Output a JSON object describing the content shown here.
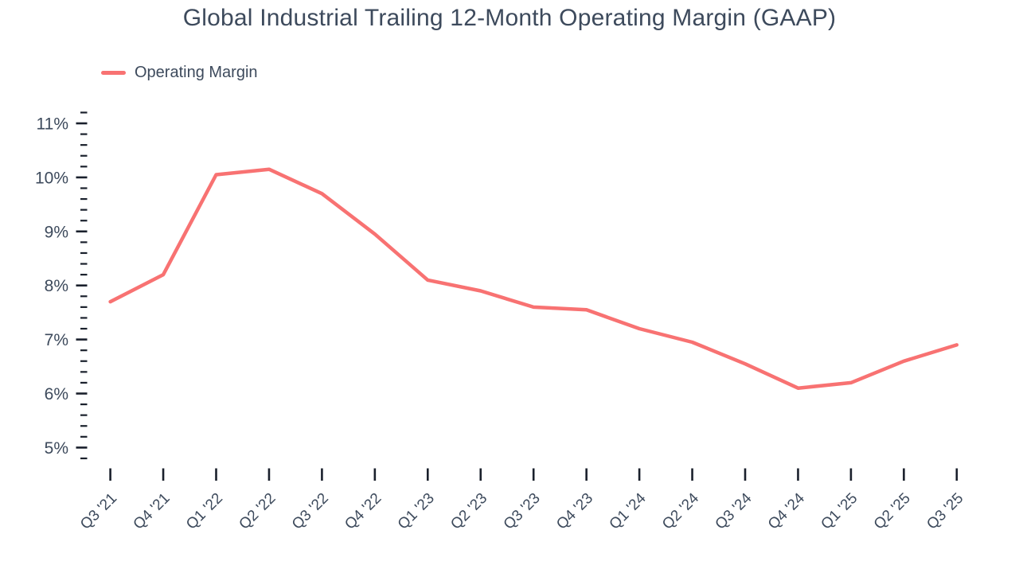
{
  "title": "Global Industrial Trailing 12-Month Operating Margin (GAAP)",
  "legend": {
    "label": "Operating Margin"
  },
  "colors": {
    "line": "#F87272",
    "text": "#3D4A5C",
    "tick": "#1A202C",
    "background": "#FFFFFF"
  },
  "chart_data": {
    "type": "line",
    "title": "Global Industrial Trailing 12-Month Operating Margin (GAAP)",
    "categories": [
      "Q3 '21",
      "Q4 '21",
      "Q1 '22",
      "Q2 '22",
      "Q3 '22",
      "Q4 '22",
      "Q1 '23",
      "Q2 '23",
      "Q3 '23",
      "Q4 '23",
      "Q1 '24",
      "Q2 '24",
      "Q3 '24",
      "Q4 '24",
      "Q1 '25",
      "Q2 '25",
      "Q3 '25"
    ],
    "series": [
      {
        "name": "Operating Margin",
        "values": [
          7.7,
          8.2,
          10.05,
          10.15,
          9.7,
          8.95,
          8.1,
          7.9,
          7.6,
          7.55,
          7.2,
          6.95,
          6.55,
          6.1,
          6.2,
          6.6,
          6.9
        ]
      }
    ],
    "xlabel": "",
    "ylabel": "",
    "y_tick_labels": [
      "5%",
      "6%",
      "7%",
      "8%",
      "9%",
      "10%",
      "11%"
    ],
    "y_major_step": 1,
    "y_minor_step": 0.2,
    "ylim": [
      4.8,
      11.2
    ],
    "unit": "%",
    "grid": false,
    "axis_lines": false,
    "legend_position": "top-left",
    "x_label_rotation": -45
  }
}
